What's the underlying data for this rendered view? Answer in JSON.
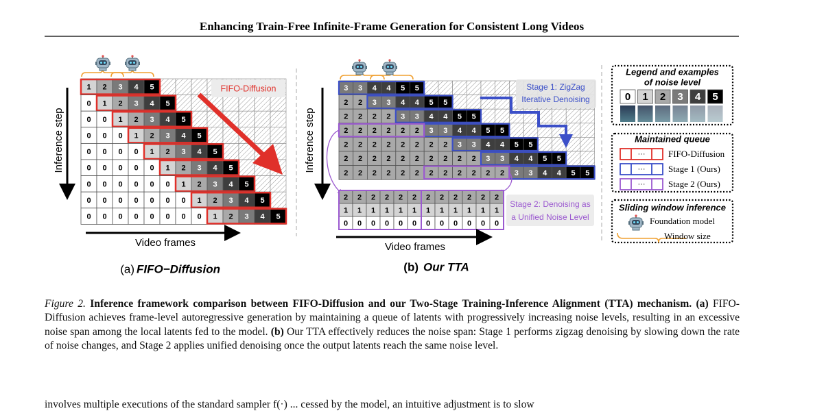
{
  "header": {
    "title": "Enhancing Train-Free Infinite-Frame Generation for Consistent Long Videos"
  },
  "panel_a": {
    "y_axis_label": "Inference step",
    "x_axis_label": "Video frames",
    "annotation": "FIFO-Diffusion",
    "caption_label": "(a)",
    "caption_title": "FIFO−Diffusion",
    "rows": [
      [
        1,
        2,
        3,
        4,
        5
      ],
      [
        0,
        1,
        2,
        3,
        4,
        5
      ],
      [
        0,
        0,
        1,
        2,
        3,
        4,
        5
      ],
      [
        0,
        0,
        0,
        1,
        2,
        3,
        4,
        5
      ],
      [
        0,
        0,
        0,
        0,
        1,
        2,
        3,
        4,
        5
      ],
      [
        0,
        0,
        0,
        0,
        0,
        1,
        2,
        3,
        4,
        5
      ],
      [
        0,
        0,
        0,
        0,
        0,
        0,
        1,
        2,
        3,
        4,
        5
      ],
      [
        0,
        0,
        0,
        0,
        0,
        0,
        0,
        1,
        2,
        3,
        4,
        5
      ],
      [
        0,
        0,
        0,
        0,
        0,
        0,
        0,
        0,
        1,
        2,
        3,
        4,
        5
      ]
    ]
  },
  "panel_b": {
    "y_axis_label": "Inference step",
    "x_axis_label": "Video frames",
    "stage1": [
      "Stage 1: ZigZag",
      "Iterative Denoising"
    ],
    "stage2": [
      "Stage 2: Denoising as",
      "a Unified Noise Level"
    ],
    "caption_label": "(b)",
    "caption_title": "Our TTA",
    "top_rows": [
      [
        3,
        3,
        4,
        4,
        5,
        5
      ],
      [
        2,
        2,
        3,
        3,
        4,
        4,
        5,
        5
      ],
      [
        2,
        2,
        2,
        2,
        3,
        3,
        4,
        4,
        5,
        5
      ],
      [
        2,
        2,
        2,
        2,
        2,
        2,
        3,
        3,
        4,
        4,
        5,
        5
      ],
      [
        2,
        2,
        2,
        2,
        2,
        2,
        2,
        2,
        3,
        3,
        4,
        4,
        5,
        5
      ],
      [
        2,
        2,
        2,
        2,
        2,
        2,
        2,
        2,
        2,
        2,
        3,
        3,
        4,
        4,
        5,
        5
      ],
      [
        2,
        2,
        2,
        2,
        2,
        2,
        2,
        2,
        2,
        2,
        2,
        2,
        3,
        3,
        4,
        4,
        5,
        5
      ]
    ],
    "bottom_rows": [
      [
        2,
        2,
        2,
        2,
        2,
        2,
        2,
        2,
        2,
        2,
        2,
        2
      ],
      [
        1,
        1,
        1,
        1,
        1,
        1,
        1,
        1,
        1,
        1,
        1,
        1
      ],
      [
        0,
        0,
        0,
        0,
        0,
        0,
        0,
        0,
        0,
        0,
        0,
        0
      ]
    ]
  },
  "legend": {
    "title": [
      "Legend and examples",
      "of noise level"
    ],
    "levels": [
      0,
      1,
      2,
      3,
      4,
      5
    ]
  },
  "queue": {
    "title": "Maintained queue",
    "ellipsis": "···",
    "items": [
      "FIFO-Diffusion",
      "Stage 1 (Ours)",
      "Stage 2 (Ours)"
    ]
  },
  "window": {
    "title": "Sliding window inference",
    "model": "Foundation model",
    "size": "Window size"
  },
  "caption": {
    "label": "Figure 2.",
    "title": "Inference framework comparison between FIFO-Diffusion and our Two-Stage Training-Inference Alignment (TTA) mechanism.",
    "a_label": "(a)",
    "a_text": "FIFO-Diffusion achieves frame-level autoregressive generation by maintaining a queue of latents with progressively increasing noise levels, resulting in an excessive noise span among the local latents fed to the model.",
    "b_label": "(b)",
    "b_text": "Our TTA effectively reduces the noise span: Stage 1 performs zigzag denoising by slowing down the rate of noise changes, and Stage 2 applies unified denoising once the output latents reach the same noise level."
  },
  "body_text": "involves multiple executions of the standard sampler f(·) ... cessed by the model, an intuitive adjustment is to slow"
}
